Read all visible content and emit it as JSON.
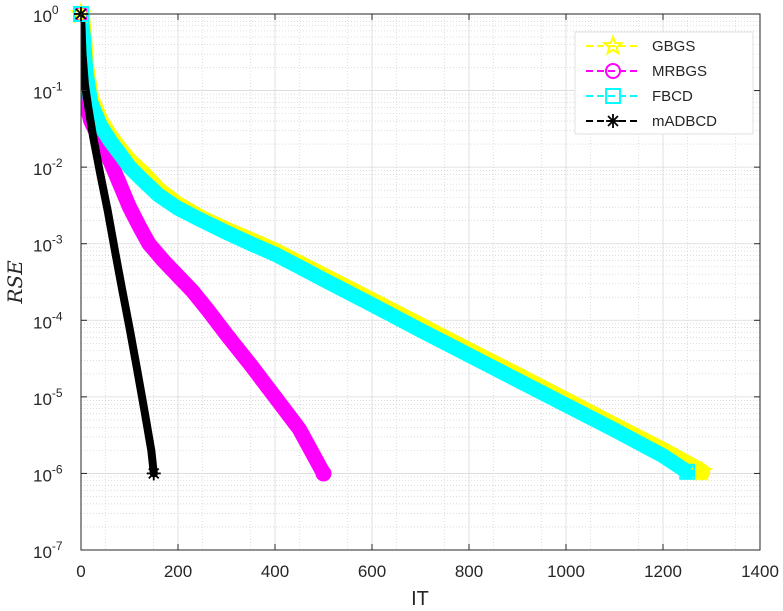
{
  "chart_data": {
    "type": "line",
    "title": "",
    "xlabel": "IT",
    "ylabel": "RSE",
    "xlim": [
      0,
      1400
    ],
    "ylim": [
      1e-07,
      1
    ],
    "yscale": "log",
    "grid": true,
    "minor_grid": true,
    "legend_position": "top-right",
    "x_ticks": [
      "0",
      "200",
      "400",
      "600",
      "800",
      "1000",
      "1200",
      "1400"
    ],
    "y_ticks": [
      {
        "base": "10",
        "exp": "-7",
        "value": 1e-07
      },
      {
        "base": "10",
        "exp": "-6",
        "value": 1e-06
      },
      {
        "base": "10",
        "exp": "-5",
        "value": 1e-05
      },
      {
        "base": "10",
        "exp": "-4",
        "value": 0.0001
      },
      {
        "base": "10",
        "exp": "-3",
        "value": 0.001
      },
      {
        "base": "10",
        "exp": "-2",
        "value": 0.01
      },
      {
        "base": "10",
        "exp": "-1",
        "value": 0.1
      },
      {
        "base": "10",
        "exp": "0",
        "value": 1
      }
    ],
    "series": [
      {
        "name": "GBGS",
        "color": "#ffff00",
        "marker": "star",
        "points": [
          [
            0,
            1
          ],
          [
            5,
            0.55
          ],
          [
            10,
            0.2
          ],
          [
            20,
            0.08
          ],
          [
            40,
            0.04
          ],
          [
            60,
            0.025
          ],
          [
            80,
            0.017
          ],
          [
            100,
            0.012
          ],
          [
            130,
            0.008
          ],
          [
            160,
            0.005
          ],
          [
            200,
            0.0032
          ],
          [
            250,
            0.0021
          ],
          [
            300,
            0.0015
          ],
          [
            350,
            0.0011
          ],
          [
            400,
            0.0008
          ],
          [
            450,
            0.00055
          ],
          [
            500,
            0.00038
          ],
          [
            600,
            0.00018
          ],
          [
            700,
            8.5e-05
          ],
          [
            800,
            4e-05
          ],
          [
            900,
            1.9e-05
          ],
          [
            1000,
            9e-06
          ],
          [
            1100,
            4.2e-06
          ],
          [
            1200,
            2e-06
          ],
          [
            1280,
            1.05e-06
          ]
        ]
      },
      {
        "name": "MRBGS",
        "color": "#ff00ff",
        "marker": "circle",
        "points": [
          [
            0,
            1
          ],
          [
            2,
            0.4
          ],
          [
            5,
            0.1
          ],
          [
            10,
            0.07
          ],
          [
            20,
            0.04
          ],
          [
            40,
            0.022
          ],
          [
            60,
            0.012
          ],
          [
            80,
            0.006
          ],
          [
            100,
            0.003
          ],
          [
            120,
            0.0017
          ],
          [
            140,
            0.001
          ],
          [
            170,
            0.0006
          ],
          [
            200,
            0.00038
          ],
          [
            230,
            0.00024
          ],
          [
            260,
            0.00014
          ],
          [
            300,
            6.5e-05
          ],
          [
            350,
            2.6e-05
          ],
          [
            400,
            1e-05
          ],
          [
            450,
            3.8e-06
          ],
          [
            500,
            1e-06
          ]
        ]
      },
      {
        "name": "FBCD",
        "color": "#00ffff",
        "marker": "square",
        "points": [
          [
            0,
            1
          ],
          [
            5,
            0.5
          ],
          [
            10,
            0.18
          ],
          [
            20,
            0.07
          ],
          [
            40,
            0.035
          ],
          [
            60,
            0.022
          ],
          [
            80,
            0.015
          ],
          [
            100,
            0.01
          ],
          [
            130,
            0.0065
          ],
          [
            160,
            0.0043
          ],
          [
            200,
            0.0029
          ],
          [
            250,
            0.002
          ],
          [
            300,
            0.0014
          ],
          [
            350,
            0.001
          ],
          [
            400,
            0.00073
          ],
          [
            450,
            0.0005
          ],
          [
            500,
            0.00034
          ],
          [
            600,
            0.00016
          ],
          [
            700,
            7.4e-05
          ],
          [
            800,
            3.5e-05
          ],
          [
            900,
            1.65e-05
          ],
          [
            1000,
            7.8e-06
          ],
          [
            1100,
            3.7e-06
          ],
          [
            1200,
            1.7e-06
          ],
          [
            1250,
            1.05e-06
          ]
        ]
      },
      {
        "name": "mADBCD",
        "color": "#000000",
        "marker": "asterisk",
        "points": [
          [
            0,
            1
          ],
          [
            3,
            0.3
          ],
          [
            8,
            0.12
          ],
          [
            15,
            0.06
          ],
          [
            25,
            0.025
          ],
          [
            40,
            0.008
          ],
          [
            55,
            0.0027
          ],
          [
            70,
            0.0008
          ],
          [
            85,
            0.00025
          ],
          [
            100,
            8e-05
          ],
          [
            115,
            2.4e-05
          ],
          [
            130,
            7e-06
          ],
          [
            145,
            2e-06
          ],
          [
            150,
            1e-06
          ]
        ]
      }
    ]
  }
}
